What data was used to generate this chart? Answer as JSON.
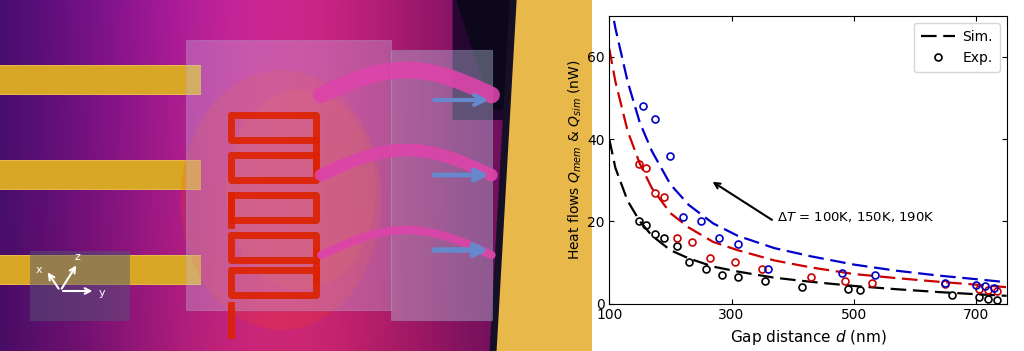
{
  "xlabel": "Gap distance $d$ (nm)",
  "ylabel": "Heat flows $Q_{mem}$ & $Q_{sim}$ (nW)",
  "xlim": [
    100,
    750
  ],
  "ylim": [
    0,
    70
  ],
  "xticks": [
    100,
    300,
    500,
    700
  ],
  "yticks": [
    0,
    20,
    40,
    60
  ],
  "colors": {
    "black": "#000000",
    "red": "#cc0000",
    "blue": "#0000cc"
  },
  "sim_black": {
    "d": [
      100,
      110,
      130,
      150,
      170,
      200,
      230,
      270,
      310,
      370,
      430,
      500,
      570,
      640,
      710,
      750
    ],
    "Q": [
      40,
      33,
      25,
      20,
      16.5,
      13,
      11,
      9,
      7.8,
      6.3,
      5.3,
      4.3,
      3.5,
      2.8,
      2.2,
      1.9
    ]
  },
  "sim_red": {
    "d": [
      100,
      110,
      130,
      150,
      170,
      200,
      230,
      270,
      310,
      370,
      430,
      500,
      570,
      640,
      710,
      750
    ],
    "Q": [
      62,
      54,
      42,
      34,
      28,
      22,
      18.5,
      15,
      13,
      10.5,
      8.8,
      7.2,
      6.2,
      5.3,
      4.5,
      4.0
    ]
  },
  "sim_blue": {
    "d": [
      100,
      110,
      130,
      150,
      170,
      200,
      230,
      270,
      310,
      370,
      430,
      500,
      570,
      640,
      710,
      750
    ],
    "Q": [
      75,
      67,
      54,
      44,
      37,
      29,
      24,
      19.5,
      16.5,
      13.5,
      11.5,
      9.5,
      8.0,
      6.8,
      5.8,
      5.2
    ]
  },
  "exp_black": {
    "d": [
      148,
      160,
      175,
      190,
      210,
      230,
      258,
      285,
      310,
      355,
      415,
      490,
      510,
      660,
      705,
      720,
      735
    ],
    "Q": [
      20,
      19,
      17,
      16,
      14,
      10,
      8.5,
      7,
      6.5,
      5.5,
      4.0,
      3.5,
      3.2,
      2.0,
      1.5,
      1.2,
      0.9
    ]
  },
  "exp_red": {
    "d": [
      148,
      160,
      175,
      190,
      210,
      235,
      265,
      305,
      350,
      430,
      485,
      530,
      650,
      705,
      720,
      735
    ],
    "Q": [
      34,
      33,
      27,
      26,
      16,
      15,
      11,
      10,
      8.5,
      6.5,
      5.5,
      5.0,
      4.8,
      3.5,
      3.2,
      3.0
    ]
  },
  "exp_blue": {
    "d": [
      155,
      175,
      200,
      220,
      250,
      280,
      310,
      360,
      480,
      535,
      650,
      700,
      715,
      730
    ],
    "Q": [
      48,
      45,
      36,
      21,
      20,
      16,
      14.5,
      8.5,
      7.5,
      7.0,
      5.0,
      4.5,
      4.2,
      3.8
    ]
  },
  "annotation_text": "$\\Delta T$ = 100K, 150K, 190K",
  "background_color": "#ffffff"
}
